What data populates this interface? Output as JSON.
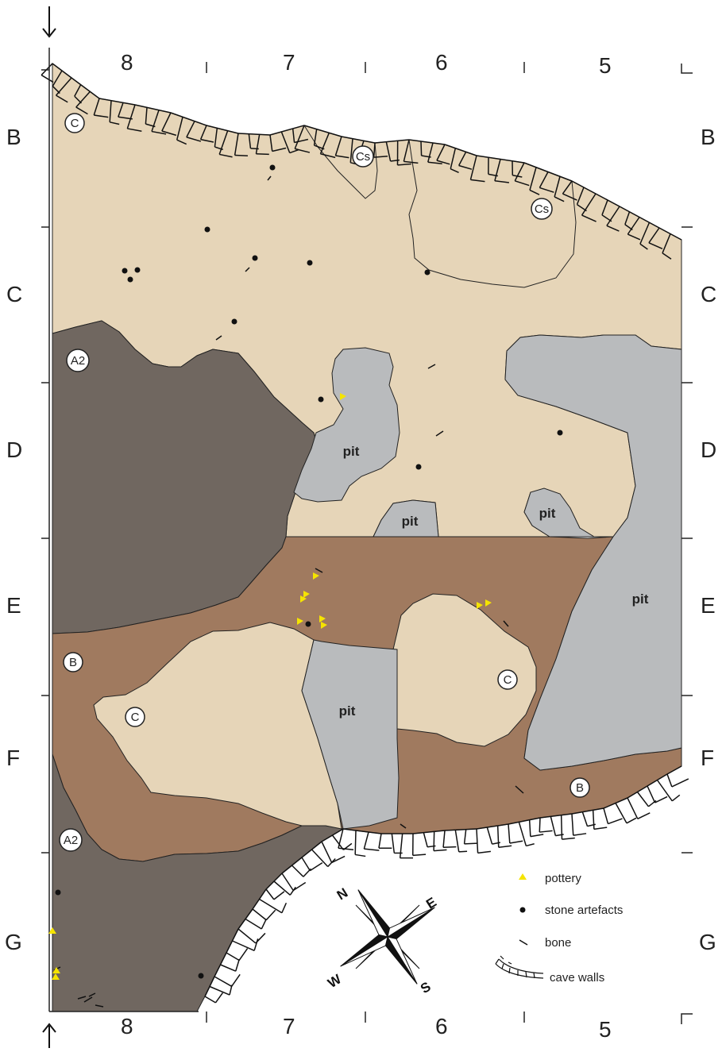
{
  "grid": {
    "columns_top": [
      "8",
      "7",
      "6",
      "5"
    ],
    "columns_bottom": [
      "8",
      "7",
      "6",
      "5"
    ],
    "rows_left": [
      "B",
      "C",
      "D",
      "E",
      "F",
      "G"
    ],
    "rows_right": [
      "B",
      "C",
      "D",
      "E",
      "F",
      "G"
    ]
  },
  "zones": {
    "c_top": "C",
    "cs_1": "Cs",
    "cs_2": "Cs",
    "a2_top": "A2",
    "b_left": "B",
    "c_left": "C",
    "c_right": "C",
    "b_right": "B",
    "a2_bottom": "A2"
  },
  "pits": {
    "pit_1": "pit",
    "pit_2": "pit",
    "pit_3": "pit",
    "pit_4": "pit",
    "pit_5": "pit"
  },
  "legend": {
    "pottery": "pottery",
    "stone": "stone artefacts",
    "bone": "bone",
    "walls": "cave walls"
  },
  "compass": {
    "n": "N",
    "e": "E",
    "s": "S",
    "w": "W"
  },
  "colors": {
    "layer_c": "#e6d5b8",
    "layer_a2": "#706760",
    "layer_b": "#a07a5f",
    "pit": "#b9bbbd",
    "pottery": "#f5e400",
    "stone": "#111111"
  }
}
